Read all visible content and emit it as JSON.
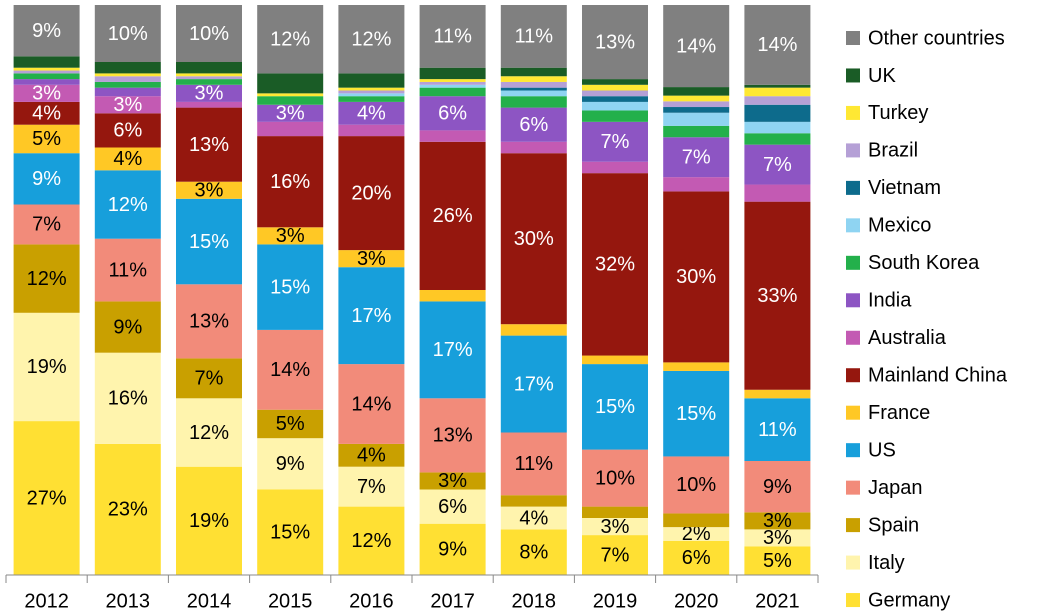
{
  "chart_data": {
    "type": "stacked_bar_100",
    "categories": [
      "2012",
      "2013",
      "2014",
      "2015",
      "2016",
      "2017",
      "2018",
      "2019",
      "2020",
      "2021"
    ],
    "ylim": [
      0,
      100
    ],
    "series": [
      {
        "name": "Germany",
        "color": "#ffe033",
        "label_color": "#000000",
        "values": [
          27,
          23,
          19,
          15,
          12,
          9,
          8,
          7,
          6,
          5
        ],
        "value_labels": [
          "27%",
          "23%",
          "19%",
          "15%",
          "12%",
          "9%",
          "8%",
          "7%",
          "6%",
          "5%"
        ]
      },
      {
        "name": "Italy",
        "color": "#fff4ad",
        "label_color": "#000000",
        "values": [
          19,
          16,
          12,
          9,
          7,
          6,
          4,
          3,
          2.4,
          3
        ],
        "value_labels": [
          "19%",
          "16%",
          "12%",
          "9%",
          "7%",
          "6%",
          "4%",
          "3%",
          "2%",
          "3%"
        ]
      },
      {
        "name": "Spain",
        "color": "#c9a000",
        "label_color": "#000000",
        "values": [
          12,
          9,
          7,
          5,
          4,
          3,
          2,
          2,
          2.4,
          3
        ],
        "value_labels": [
          "12%",
          "9%",
          "7%",
          "5%",
          "4%",
          "3%",
          null,
          null,
          null,
          "3%"
        ]
      },
      {
        "name": "Japan",
        "color": "#f28b7a",
        "label_color": "#000000",
        "values": [
          7,
          11,
          13,
          14,
          14,
          13,
          11,
          10,
          10,
          9
        ],
        "value_labels": [
          "7%",
          "11%",
          "13%",
          "14%",
          "14%",
          "13%",
          "11%",
          "10%",
          "10%",
          "9%"
        ]
      },
      {
        "name": "US",
        "color": "#179fdb",
        "label_color": "#ffffff",
        "values": [
          9,
          12,
          15,
          15,
          17,
          17,
          17,
          15,
          15,
          11
        ],
        "value_labels": [
          "9%",
          "12%",
          "15%",
          "15%",
          "17%",
          "17%",
          "17%",
          "15%",
          "15%",
          "11%"
        ]
      },
      {
        "name": "France",
        "color": "#ffc825",
        "label_color": "#000000",
        "values": [
          5,
          4,
          3,
          3,
          3,
          2,
          2,
          1.5,
          1.5,
          1.5
        ],
        "value_labels": [
          "5%",
          "4%",
          "3%",
          "3%",
          "3%",
          null,
          null,
          null,
          null,
          null
        ]
      },
      {
        "name": "Mainland China",
        "color": "#95170e",
        "label_color": "#ffffff",
        "values": [
          4,
          6,
          13,
          16,
          20,
          26,
          30,
          32,
          30,
          33
        ],
        "value_labels": [
          "4%",
          "6%",
          "13%",
          "16%",
          "20%",
          "26%",
          "30%",
          "32%",
          "30%",
          "33%"
        ]
      },
      {
        "name": "Australia",
        "color": "#c35ab3",
        "label_color": "#ffffff",
        "values": [
          3,
          3,
          1,
          2.5,
          2,
          2,
          2,
          2,
          2.5,
          3
        ],
        "value_labels": [
          "3%",
          "3%",
          null,
          null,
          null,
          null,
          null,
          null,
          null,
          null
        ]
      },
      {
        "name": "India",
        "color": "#8d55c3",
        "label_color": "#ffffff",
        "values": [
          1,
          1.5,
          3,
          3,
          4,
          6,
          6,
          7,
          7,
          7
        ],
        "value_labels": [
          null,
          null,
          "3%",
          "3%",
          "4%",
          "6%",
          "6%",
          "7%",
          "7%",
          "7%"
        ]
      },
      {
        "name": "South Korea",
        "color": "#23b04b",
        "label_color": "#000000",
        "values": [
          1,
          1,
          1,
          1.5,
          1,
          1.5,
          2,
          2,
          2,
          2
        ]
      },
      {
        "name": "Mexico",
        "color": "#8fd4f2",
        "label_color": "#000000",
        "values": [
          0,
          0,
          0,
          0,
          0.5,
          0.5,
          1,
          1.5,
          2.3,
          2
        ]
      },
      {
        "name": "Vietnam",
        "color": "#0d6b8c",
        "label_color": "#ffffff",
        "values": [
          0,
          0,
          0,
          0,
          0,
          0,
          0.5,
          1,
          1,
          3
        ]
      },
      {
        "name": "Brazil",
        "color": "#b5a0d6",
        "label_color": "#000000",
        "values": [
          0.5,
          1,
          0.5,
          0,
          0.5,
          0.5,
          1,
          1,
          1,
          1.5
        ]
      },
      {
        "name": "Turkey",
        "color": "#ffe833",
        "label_color": "#000000",
        "values": [
          0.5,
          0.5,
          0.5,
          0.5,
          0.5,
          0.5,
          1,
          1,
          1,
          1.5
        ]
      },
      {
        "name": "UK",
        "color": "#1a5c26",
        "label_color": "#ffffff",
        "values": [
          2,
          2,
          2,
          3.5,
          2.5,
          2,
          1.5,
          1,
          1.5,
          0.5
        ]
      },
      {
        "name": "Other countries",
        "color": "#808080",
        "label_color": "#ffffff",
        "values": [
          9,
          10,
          10,
          12,
          12,
          11,
          11,
          13,
          14.4,
          14
        ],
        "value_labels": [
          "9%",
          "10%",
          "10%",
          "12%",
          "12%",
          "11%",
          "11%",
          "13%",
          "14%",
          "14%"
        ]
      }
    ]
  }
}
